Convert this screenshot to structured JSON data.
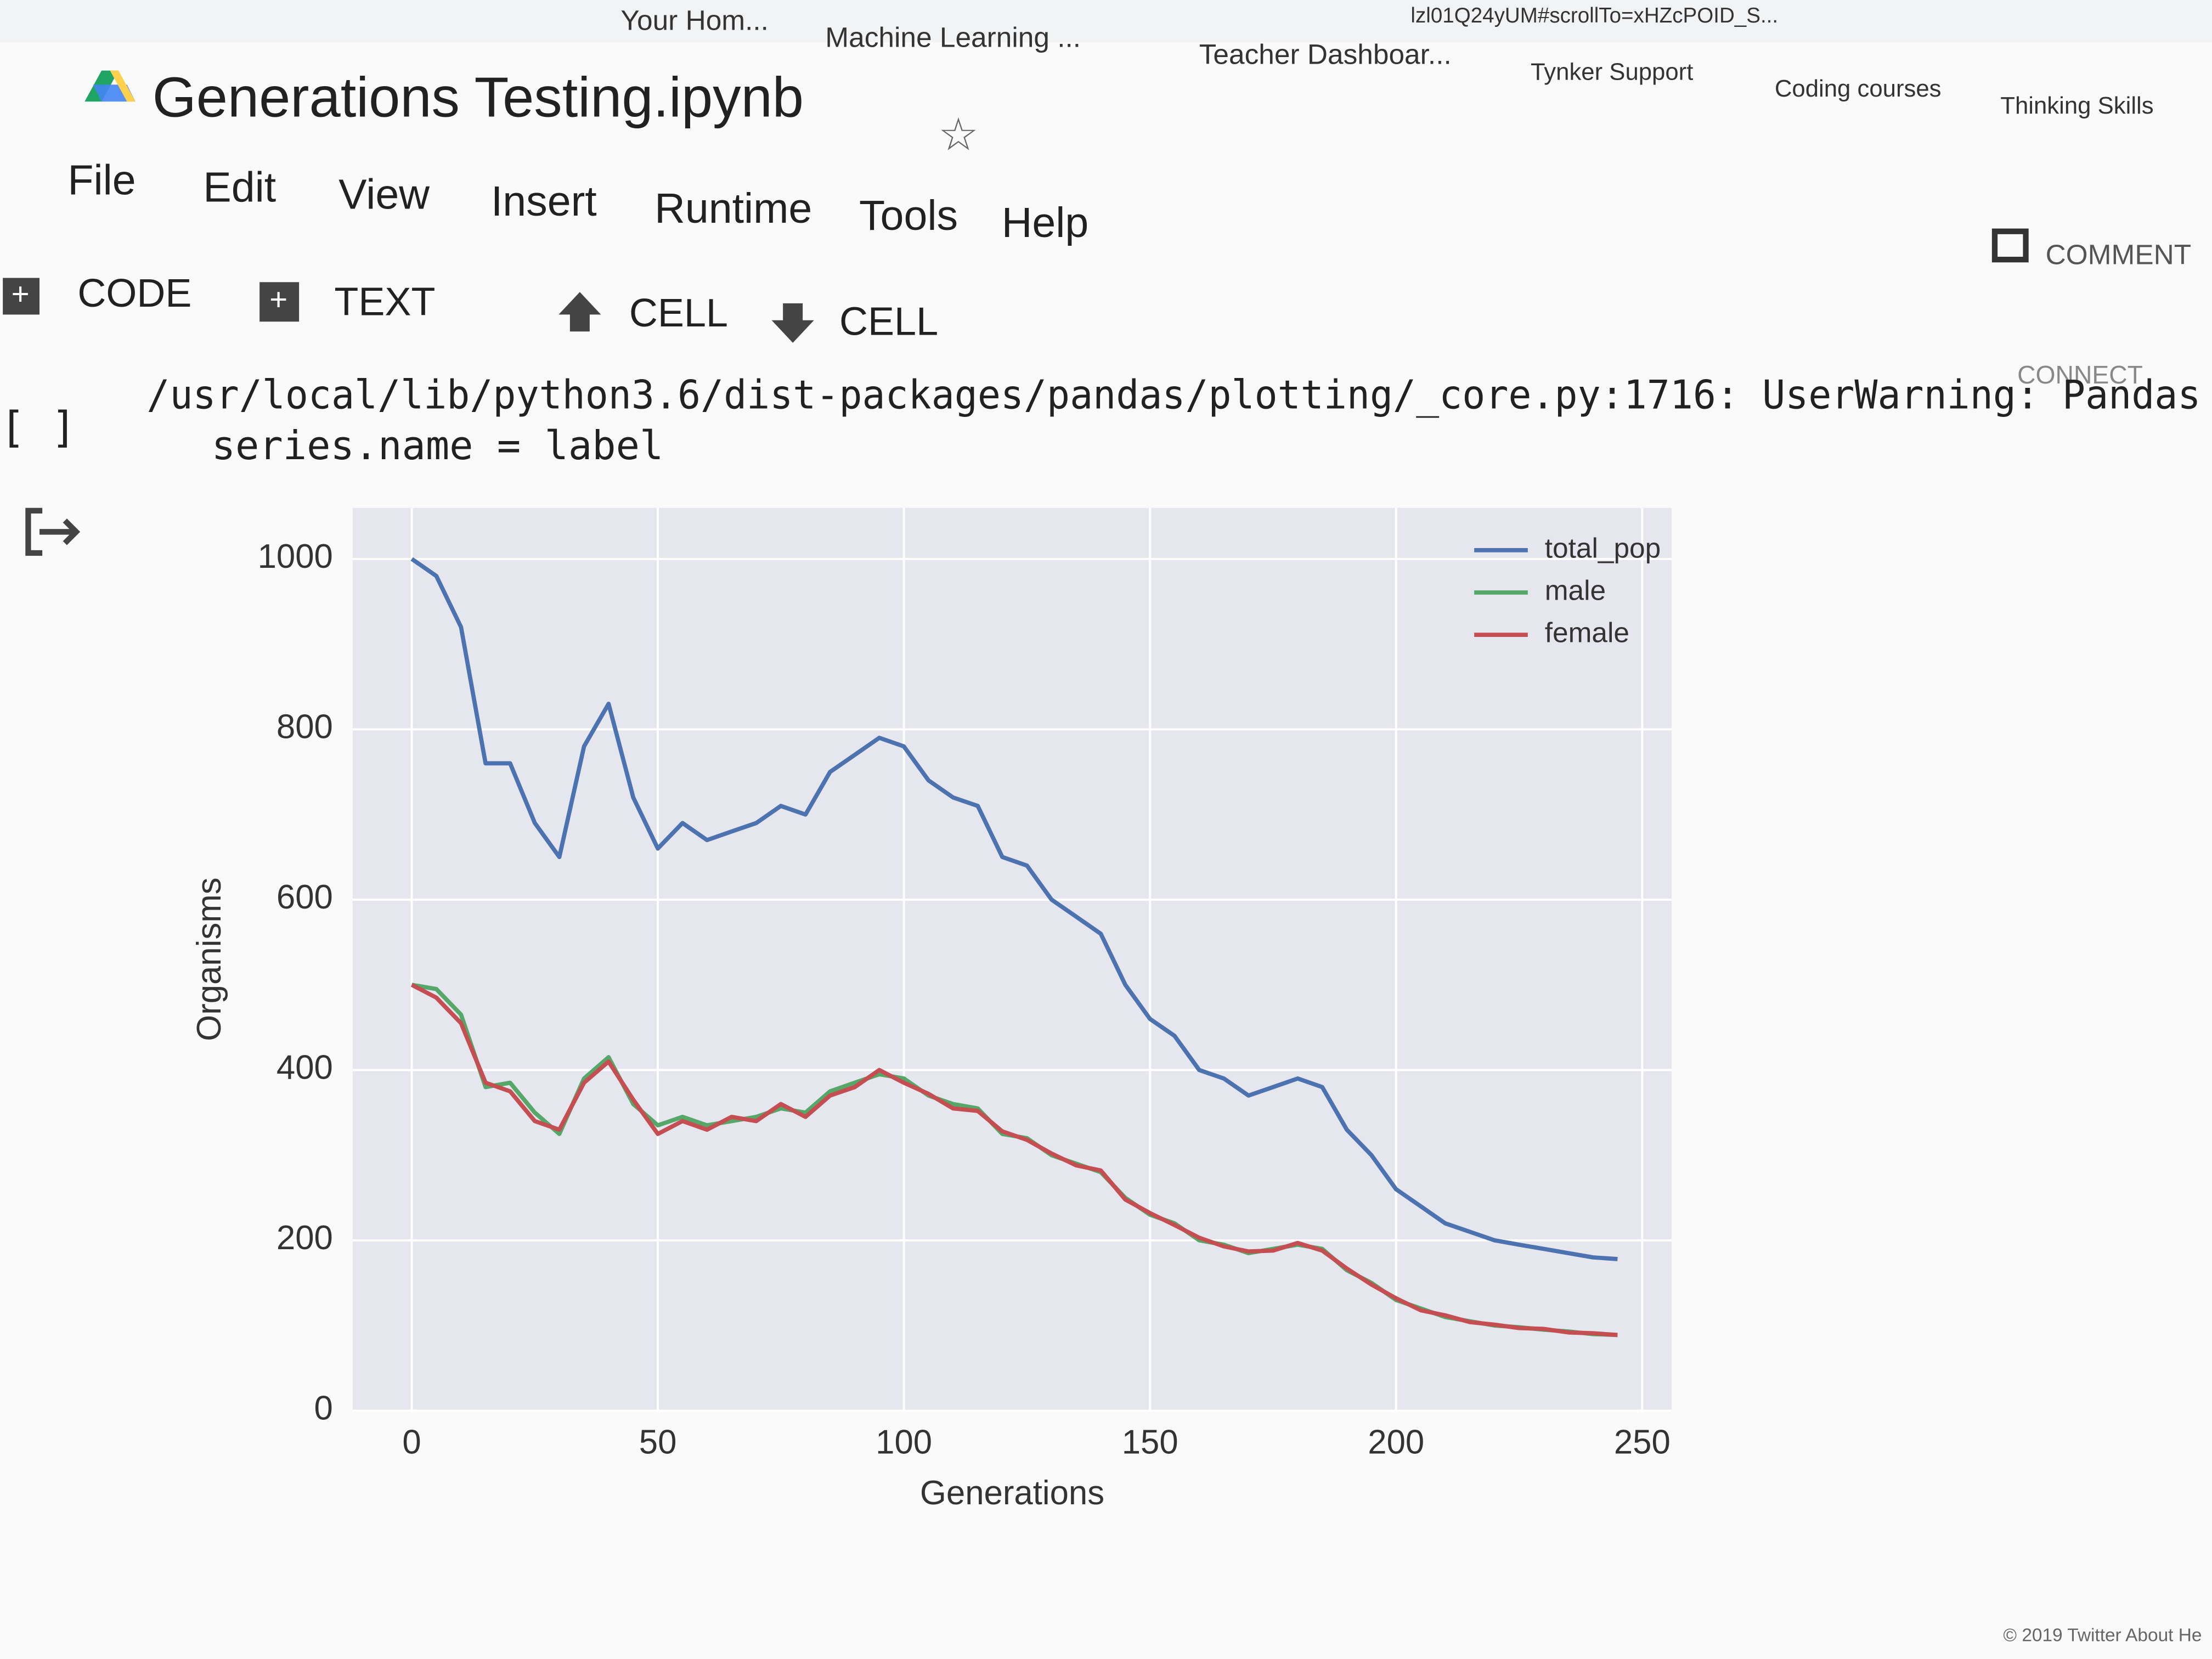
{
  "browser": {
    "url": "lzl01Q24yUM#scrollTo=xHZcPOID_S...",
    "bookmarks": [
      "Your Hom...",
      "Machine Learning ...",
      "Teacher Dashboar...",
      "Tynker Support",
      "Coding courses",
      "Thinking Skills"
    ]
  },
  "notebook": {
    "title": "Generations Testing.ipynb",
    "menu": [
      "File",
      "Edit",
      "View",
      "Insert",
      "Runtime",
      "Tools",
      "Help"
    ],
    "toolbar": {
      "code": "CODE",
      "text": "TEXT",
      "cell_up": "CELL",
      "cell_down": "CELL",
      "comment": "COMMENT",
      "connect": "CONNECT"
    },
    "cell": {
      "run_marker": "[ ]",
      "warning": "/usr/local/lib/python3.6/dist-packages/pandas/plotting/_core.py:1716: UserWarning: Pandas",
      "code_line": "series.name = label"
    },
    "footer": "© 2019 Twitter  About  He"
  },
  "chart_data": {
    "type": "line",
    "xlabel": "Generations",
    "ylabel": "Organisms",
    "x": [
      0,
      5,
      10,
      15,
      20,
      25,
      30,
      35,
      40,
      45,
      50,
      55,
      60,
      65,
      70,
      75,
      80,
      85,
      90,
      95,
      100,
      105,
      110,
      115,
      120,
      125,
      130,
      135,
      140,
      145,
      150,
      155,
      160,
      165,
      170,
      175,
      180,
      185,
      190,
      195,
      200,
      205,
      210,
      215,
      220,
      225,
      230,
      235,
      240,
      245
    ],
    "series": [
      {
        "name": "total_pop",
        "color": "#4c72b0",
        "values": [
          1000,
          980,
          920,
          760,
          760,
          690,
          650,
          780,
          830,
          720,
          660,
          690,
          670,
          680,
          690,
          710,
          700,
          750,
          770,
          790,
          780,
          740,
          720,
          710,
          650,
          640,
          600,
          580,
          560,
          500,
          460,
          440,
          400,
          390,
          370,
          380,
          390,
          380,
          330,
          300,
          260,
          240,
          220,
          210,
          200,
          195,
          190,
          185,
          180,
          178
        ]
      },
      {
        "name": "male",
        "color": "#55a868",
        "values": [
          500,
          495,
          465,
          380,
          385,
          350,
          325,
          390,
          415,
          360,
          335,
          345,
          335,
          340,
          345,
          355,
          350,
          375,
          385,
          395,
          390,
          370,
          360,
          355,
          325,
          320,
          300,
          290,
          280,
          250,
          230,
          220,
          200,
          195,
          185,
          190,
          195,
          190,
          165,
          150,
          130,
          120,
          110,
          105,
          100,
          98,
          95,
          93,
          90,
          89
        ]
      },
      {
        "name": "female",
        "color": "#c44e52",
        "values": [
          500,
          485,
          455,
          385,
          375,
          340,
          330,
          385,
          410,
          365,
          325,
          340,
          330,
          345,
          340,
          360,
          345,
          370,
          380,
          400,
          385,
          372,
          355,
          352,
          328,
          318,
          302,
          288,
          282,
          248,
          232,
          218,
          203,
          193,
          187,
          188,
          197,
          188,
          167,
          148,
          132,
          118,
          112,
          104,
          101,
          97,
          96,
          92,
          91,
          89
        ]
      }
    ],
    "xlim": [
      -12,
      256
    ],
    "ylim": [
      0,
      1060
    ],
    "xticks": [
      0,
      50,
      100,
      150,
      200,
      250
    ],
    "yticks": [
      0,
      200,
      400,
      600,
      800,
      1000
    ],
    "grid": true,
    "legend": "upper right",
    "background": "#e6e6ee"
  }
}
